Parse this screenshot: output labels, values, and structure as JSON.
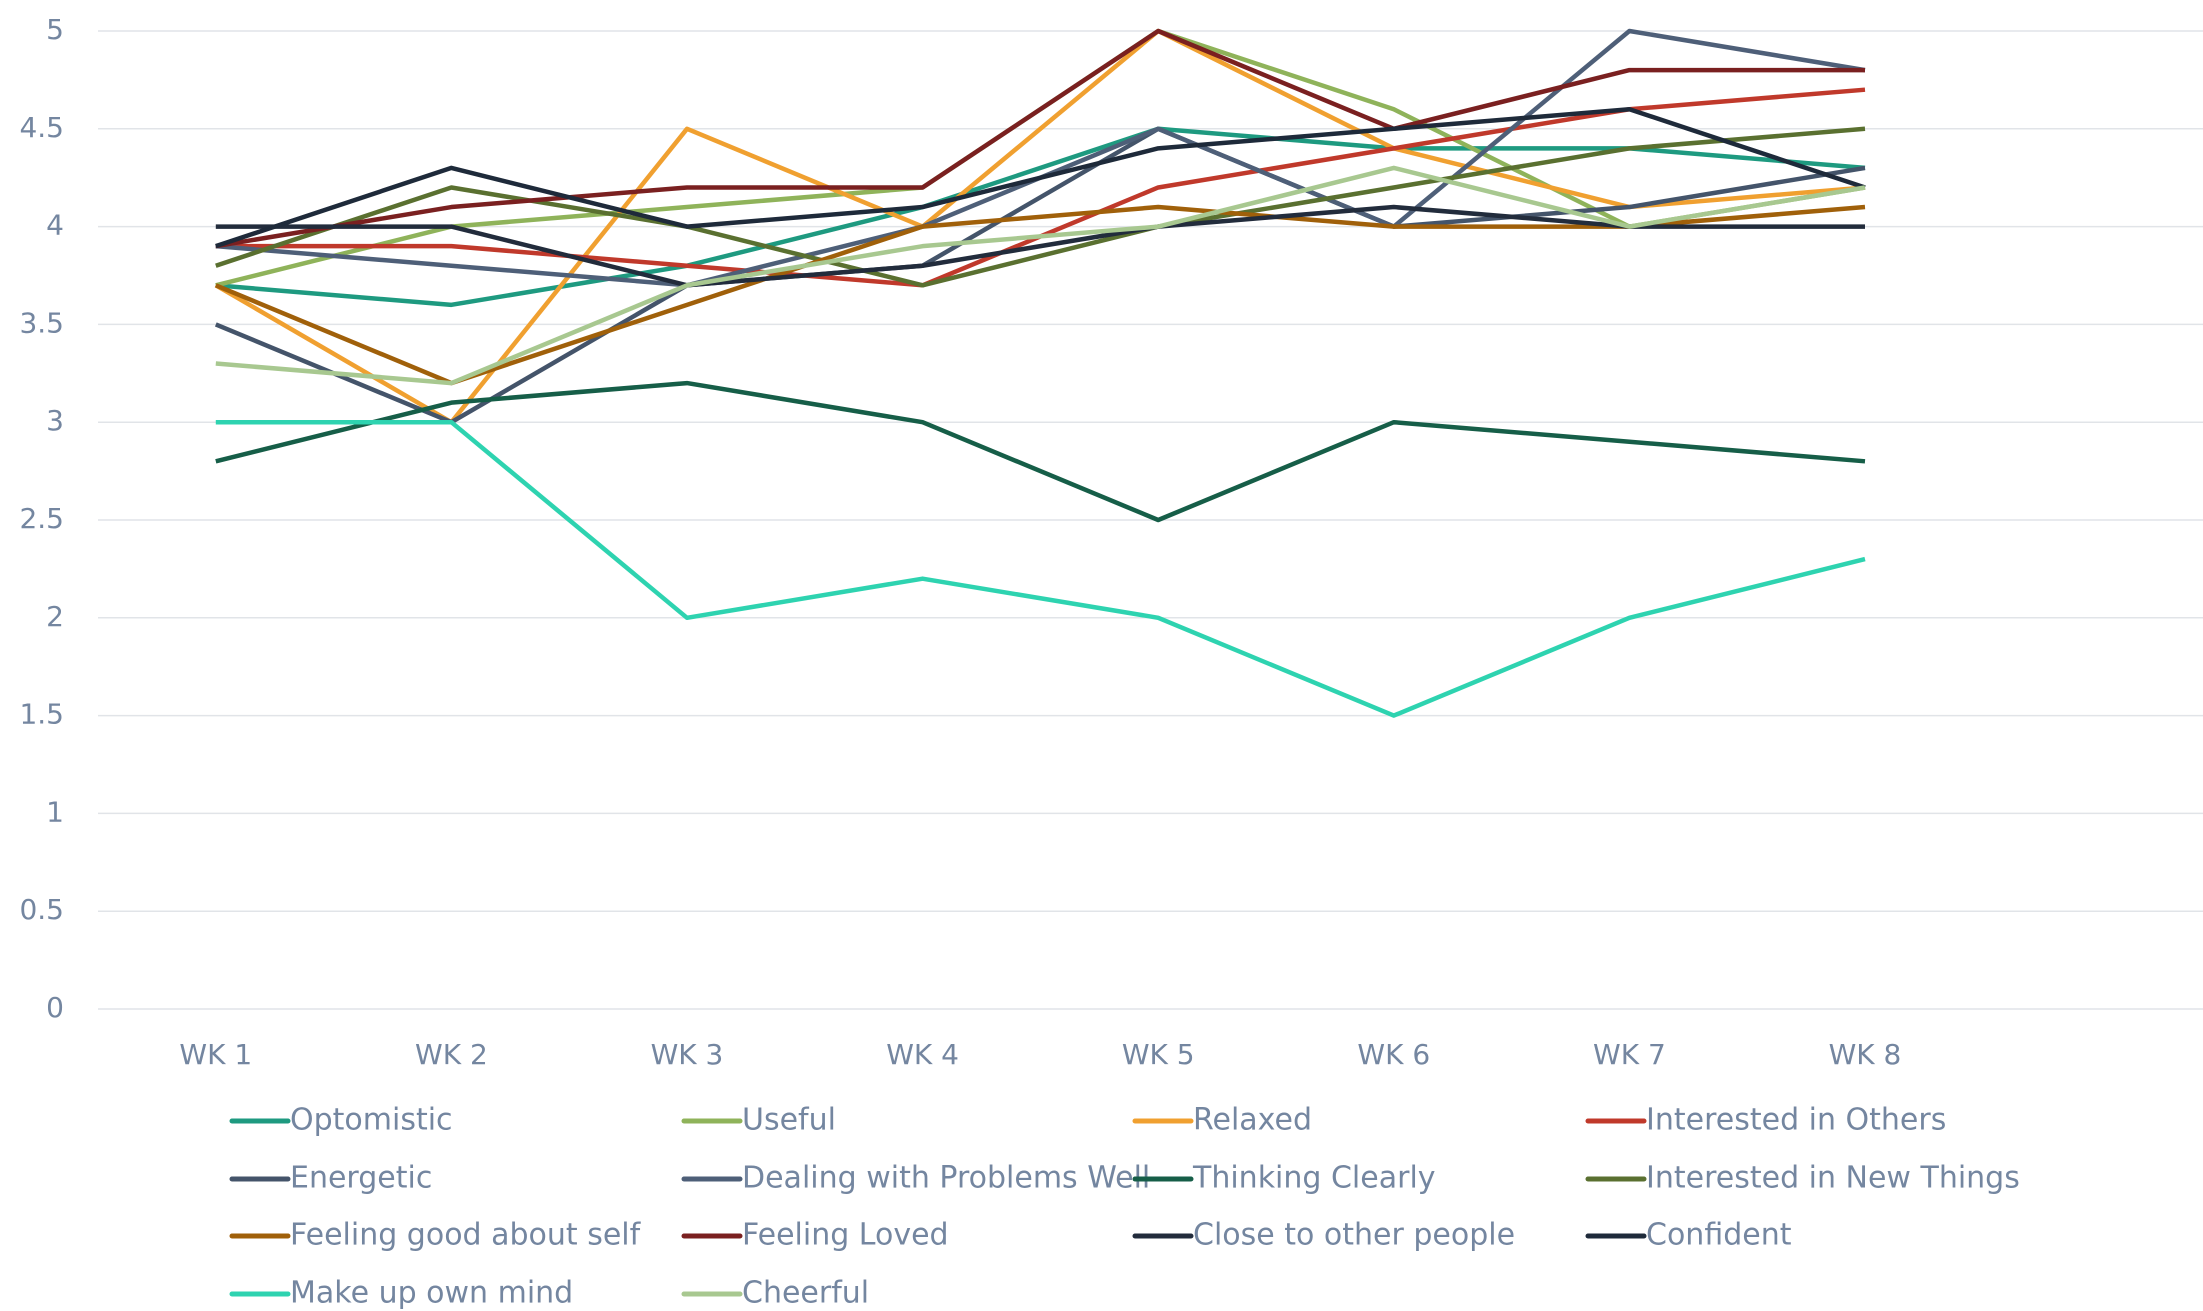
{
  "chart_data": {
    "type": "line",
    "categories": [
      "WK 1",
      "WK 2",
      "WK 3",
      "WK 4",
      "WK 5",
      "WK 6",
      "WK 7",
      "WK 8"
    ],
    "ylim": [
      0,
      5
    ],
    "yticks": [
      0,
      0.5,
      1,
      1.5,
      2,
      2.5,
      3,
      3.5,
      4,
      4.5,
      5
    ],
    "grid": true,
    "legend": "bottom",
    "series": [
      {
        "name": "Optomistic",
        "color": "#1e9a80",
        "values": [
          3.7,
          3.6,
          3.8,
          4.1,
          4.5,
          4.4,
          4.4,
          4.3
        ]
      },
      {
        "name": "Useful",
        "color": "#8fb35a",
        "values": [
          3.7,
          4.0,
          4.1,
          4.2,
          5.0,
          4.6,
          4.0,
          4.2
        ]
      },
      {
        "name": "Relaxed",
        "color": "#f0a030",
        "values": [
          3.7,
          3.0,
          4.5,
          4.0,
          5.0,
          4.4,
          4.1,
          4.2
        ]
      },
      {
        "name": "Interested in Others",
        "color": "#c0392b",
        "values": [
          3.9,
          3.9,
          3.8,
          3.7,
          4.2,
          4.4,
          4.6,
          4.7
        ]
      },
      {
        "name": "Energetic",
        "color": "#44546a",
        "values": [
          3.5,
          3.0,
          3.7,
          3.8,
          4.5,
          4.0,
          4.1,
          4.3
        ]
      },
      {
        "name": "Dealing with Problems Well",
        "color": "#4e5f78",
        "values": [
          3.9,
          3.8,
          3.7,
          4.0,
          4.5,
          4.0,
          5.0,
          4.8
        ]
      },
      {
        "name": "Thinking Clearly",
        "color": "#165e48",
        "values": [
          2.8,
          3.1,
          3.2,
          3.0,
          2.5,
          3.0,
          2.9,
          2.8
        ]
      },
      {
        "name": "Interested in New Things",
        "color": "#5a7030",
        "values": [
          3.8,
          4.2,
          4.0,
          3.7,
          4.0,
          4.2,
          4.4,
          4.5
        ]
      },
      {
        "name": "Feeling good about self",
        "color": "#a0600a",
        "values": [
          3.7,
          3.2,
          3.6,
          4.0,
          4.1,
          4.0,
          4.0,
          4.1
        ]
      },
      {
        "name": "Feeling Loved",
        "color": "#7a2020",
        "values": [
          3.9,
          4.1,
          4.2,
          4.2,
          5.0,
          4.5,
          4.8,
          4.8
        ]
      },
      {
        "name": "Close to other people",
        "color": "#222c3c",
        "values": [
          4.0,
          4.0,
          3.7,
          3.8,
          4.0,
          4.1,
          4.0,
          4.0
        ]
      },
      {
        "name": "Confident",
        "color": "#1e2a3a",
        "values": [
          3.9,
          4.3,
          4.0,
          4.1,
          4.4,
          4.5,
          4.6,
          4.2
        ]
      },
      {
        "name": "Make up own mind",
        "color": "#2ed3b0",
        "values": [
          3.0,
          3.0,
          2.0,
          2.2,
          2.0,
          1.5,
          2.0,
          2.3
        ]
      },
      {
        "name": "Cheerful",
        "color": "#a8c890",
        "values": [
          3.3,
          3.2,
          3.7,
          3.9,
          4.0,
          4.3,
          4.0,
          4.2
        ]
      }
    ]
  }
}
